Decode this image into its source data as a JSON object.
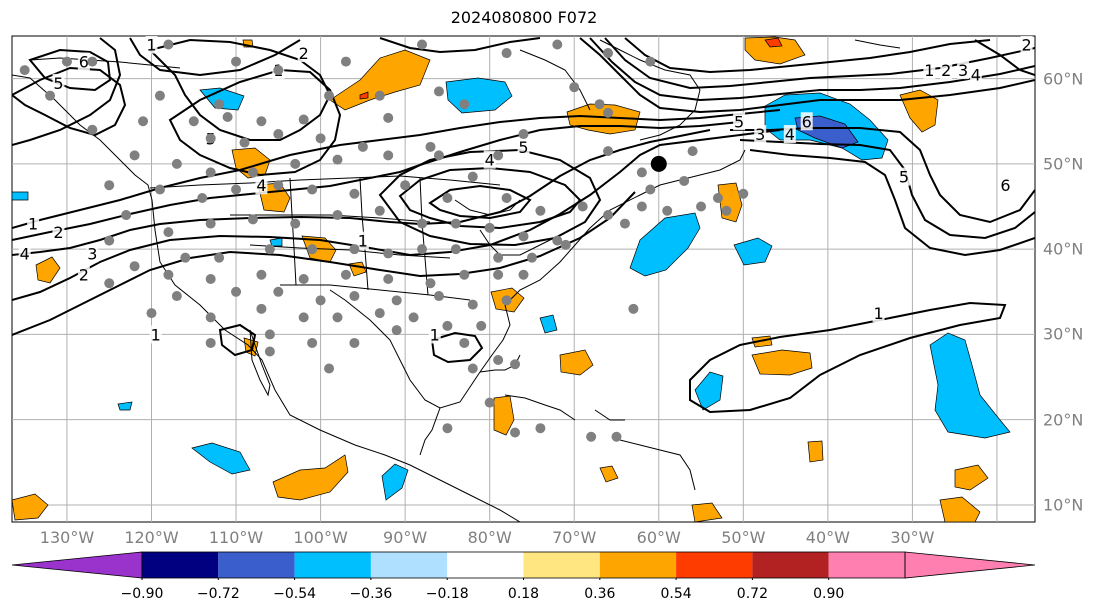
{
  "title": "2024080800 F072",
  "lon_labels": [
    {
      "lon": -130,
      "text": "130°W"
    },
    {
      "lon": -120,
      "text": "120°W"
    },
    {
      "lon": -110,
      "text": "110°W"
    },
    {
      "lon": -100,
      "text": "100°W"
    },
    {
      "lon": -90,
      "text": "90°W"
    },
    {
      "lon": -80,
      "text": "80°W"
    },
    {
      "lon": -70,
      "text": "70°W"
    },
    {
      "lon": -60,
      "text": "60°W"
    },
    {
      "lon": -50,
      "text": "50°W"
    },
    {
      "lon": -40,
      "text": "40°W"
    },
    {
      "lon": -30,
      "text": "30°W"
    }
  ],
  "lat_labels": [
    {
      "lat": 60,
      "text": "60°N"
    },
    {
      "lat": 50,
      "text": "50°N"
    },
    {
      "lat": 40,
      "text": "40°N"
    },
    {
      "lat": 30,
      "text": "30°N"
    },
    {
      "lat": 20,
      "text": "20°N"
    },
    {
      "lat": 10,
      "text": "10°N"
    }
  ],
  "map_extent": {
    "lon_min": -136.5,
    "lon_max": -15.5,
    "lat_min": 8,
    "lat_max": 65
  },
  "colorbar": {
    "ticks": [
      "−0.90",
      "−0.72",
      "−0.54",
      "−0.36",
      "−0.18",
      "0.18",
      "0.36",
      "0.54",
      "0.72",
      "0.90"
    ],
    "under_color": "#9933cc",
    "colors": [
      "#000080",
      "#3a5fcd",
      "#00bfff",
      "#b0e0ff",
      "#ffffff",
      "#ffe680",
      "#ffa500",
      "#ff3c00",
      "#b22222",
      "#ff80b0"
    ],
    "over_color": "#ff80b0"
  },
  "contour_labels": [
    {
      "lon": -128,
      "lat": 62,
      "text": "6"
    },
    {
      "lon": -131,
      "lat": 59.5,
      "text": "5"
    },
    {
      "lon": -120,
      "lat": 64,
      "text": "1"
    },
    {
      "lon": -102,
      "lat": 63,
      "text": "2"
    },
    {
      "lon": -105,
      "lat": 61,
      "text": "1"
    },
    {
      "lon": -113,
      "lat": 53,
      "text": "5"
    },
    {
      "lon": -107,
      "lat": 47.5,
      "text": "4"
    },
    {
      "lon": -134,
      "lat": 43,
      "text": "1"
    },
    {
      "lon": -131,
      "lat": 42,
      "text": "2"
    },
    {
      "lon": -135,
      "lat": 39.5,
      "text": "4"
    },
    {
      "lon": -127,
      "lat": 39.5,
      "text": "3"
    },
    {
      "lon": -128,
      "lat": 37,
      "text": "2"
    },
    {
      "lon": -95,
      "lat": 41,
      "text": "1"
    },
    {
      "lon": -80,
      "lat": 50.5,
      "text": "4"
    },
    {
      "lon": -76,
      "lat": 52,
      "text": "5"
    },
    {
      "lon": -48,
      "lat": 53.5,
      "text": "3"
    },
    {
      "lon": -44.5,
      "lat": 53.5,
      "text": "4"
    },
    {
      "lon": -42.5,
      "lat": 55,
      "text": "6"
    },
    {
      "lon": -50.5,
      "lat": 55,
      "text": "5"
    },
    {
      "lon": -28,
      "lat": 61,
      "text": "1"
    },
    {
      "lon": -26,
      "lat": 61,
      "text": "2"
    },
    {
      "lon": -24,
      "lat": 61,
      "text": "3"
    },
    {
      "lon": -22.5,
      "lat": 60.5,
      "text": "4"
    },
    {
      "lon": -16.5,
      "lat": 64,
      "text": "2"
    },
    {
      "lon": -19,
      "lat": 47.5,
      "text": "6"
    },
    {
      "lon": -31,
      "lat": 48.5,
      "text": "5"
    },
    {
      "lon": -119.5,
      "lat": 30,
      "text": "1"
    },
    {
      "lon": -86.5,
      "lat": 30,
      "text": "1"
    },
    {
      "lon": -34,
      "lat": 32.5,
      "text": "1"
    }
  ],
  "stations": [
    [
      -135,
      61
    ],
    [
      -130,
      62
    ],
    [
      -127,
      62
    ],
    [
      -118,
      64
    ],
    [
      -110,
      62
    ],
    [
      -105,
      61
    ],
    [
      -97,
      62
    ],
    [
      -88,
      64
    ],
    [
      -78,
      63
    ],
    [
      -72,
      64
    ],
    [
      -61,
      62
    ],
    [
      -66,
      63
    ],
    [
      -132,
      58
    ],
    [
      -119,
      58
    ],
    [
      -112,
      57
    ],
    [
      -99,
      58
    ],
    [
      -93,
      58
    ],
    [
      -86,
      58.5
    ],
    [
      -70,
      59
    ],
    [
      -83,
      57
    ],
    [
      -67,
      57
    ],
    [
      -121,
      55
    ],
    [
      -115,
      55
    ],
    [
      -111,
      55.5
    ],
    [
      -107,
      55
    ],
    [
      -102,
      55.2
    ],
    [
      -92,
      55.4
    ],
    [
      -76,
      53.5
    ],
    [
      -66,
      56
    ],
    [
      -127,
      54
    ],
    [
      -113,
      53
    ],
    [
      -109,
      52.5
    ],
    [
      -105,
      53.5
    ],
    [
      -100,
      53
    ],
    [
      -95,
      52
    ],
    [
      -87,
      52
    ],
    [
      -79,
      51
    ],
    [
      -66,
      51.5
    ],
    [
      -62,
      49
    ],
    [
      -56,
      51.5
    ],
    [
      -122,
      51
    ],
    [
      -117,
      50
    ],
    [
      -113,
      49
    ],
    [
      -108,
      49
    ],
    [
      -103,
      50
    ],
    [
      -98,
      50.5
    ],
    [
      -92,
      51
    ],
    [
      -86,
      51
    ],
    [
      -82,
      48.5
    ],
    [
      -61,
      47
    ],
    [
      -57,
      48
    ],
    [
      -53,
      46
    ],
    [
      -50,
      46.5
    ],
    [
      -62,
      45
    ],
    [
      -125,
      47.5
    ],
    [
      -119,
      47
    ],
    [
      -114,
      46
    ],
    [
      -110,
      47
    ],
    [
      -105,
      47.5
    ],
    [
      -101,
      47
    ],
    [
      -96,
      46.5
    ],
    [
      -90,
      47.5
    ],
    [
      -85,
      46
    ],
    [
      -78,
      46
    ],
    [
      -74,
      44.5
    ],
    [
      -69,
      45
    ],
    [
      -66,
      44
    ],
    [
      -59,
      44.5
    ],
    [
      -55,
      45
    ],
    [
      -52,
      44.5
    ],
    [
      -123,
      44
    ],
    [
      -118,
      42
    ],
    [
      -113,
      43
    ],
    [
      -108,
      43.5
    ],
    [
      -103,
      43
    ],
    [
      -98,
      44
    ],
    [
      -93,
      44.5
    ],
    [
      -88,
      43
    ],
    [
      -84,
      43
    ],
    [
      -80,
      42.5
    ],
    [
      -76,
      41.5
    ],
    [
      -72,
      41
    ],
    [
      -64,
      43
    ],
    [
      -125,
      41
    ],
    [
      -116,
      39
    ],
    [
      -112,
      39
    ],
    [
      -106,
      40
    ],
    [
      -101,
      40
    ],
    [
      -96,
      40
    ],
    [
      -92,
      39.5
    ],
    [
      -88,
      40
    ],
    [
      -84,
      40
    ],
    [
      -79,
      39
    ],
    [
      -75,
      39
    ],
    [
      -71,
      40.5
    ],
    [
      -122,
      38
    ],
    [
      -118,
      37
    ],
    [
      -113,
      36.5
    ],
    [
      -107,
      37
    ],
    [
      -102,
      36.5
    ],
    [
      -97,
      37
    ],
    [
      -92,
      36.5
    ],
    [
      -87,
      36
    ],
    [
      -83,
      37
    ],
    [
      -79,
      37
    ],
    [
      -76,
      37
    ],
    [
      -125,
      36
    ],
    [
      -117,
      34.5
    ],
    [
      -110,
      35
    ],
    [
      -105,
      35
    ],
    [
      -100,
      34
    ],
    [
      -96,
      34.5
    ],
    [
      -91,
      34
    ],
    [
      -86,
      34.5
    ],
    [
      -82,
      33.5
    ],
    [
      -78,
      34
    ],
    [
      -63,
      33
    ],
    [
      -120,
      32.5
    ],
    [
      -113,
      32
    ],
    [
      -107,
      33
    ],
    [
      -102,
      32
    ],
    [
      -98,
      32
    ],
    [
      -93,
      32.5
    ],
    [
      -89,
      32
    ],
    [
      -85,
      31
    ],
    [
      -81,
      31
    ],
    [
      -113,
      29
    ],
    [
      -106,
      30
    ],
    [
      -101,
      29
    ],
    [
      -96,
      29
    ],
    [
      -91,
      30.5
    ],
    [
      -83,
      29
    ],
    [
      -79,
      27
    ],
    [
      -106,
      28
    ],
    [
      -99,
      26
    ],
    [
      -82,
      26
    ],
    [
      -77,
      26.5
    ],
    [
      -80,
      22
    ],
    [
      -74,
      19
    ],
    [
      -68,
      18
    ],
    [
      -65,
      18
    ],
    [
      -77,
      18.5
    ],
    [
      -85,
      19
    ]
  ],
  "marker": {
    "lon": -60,
    "lat": 50
  }
}
